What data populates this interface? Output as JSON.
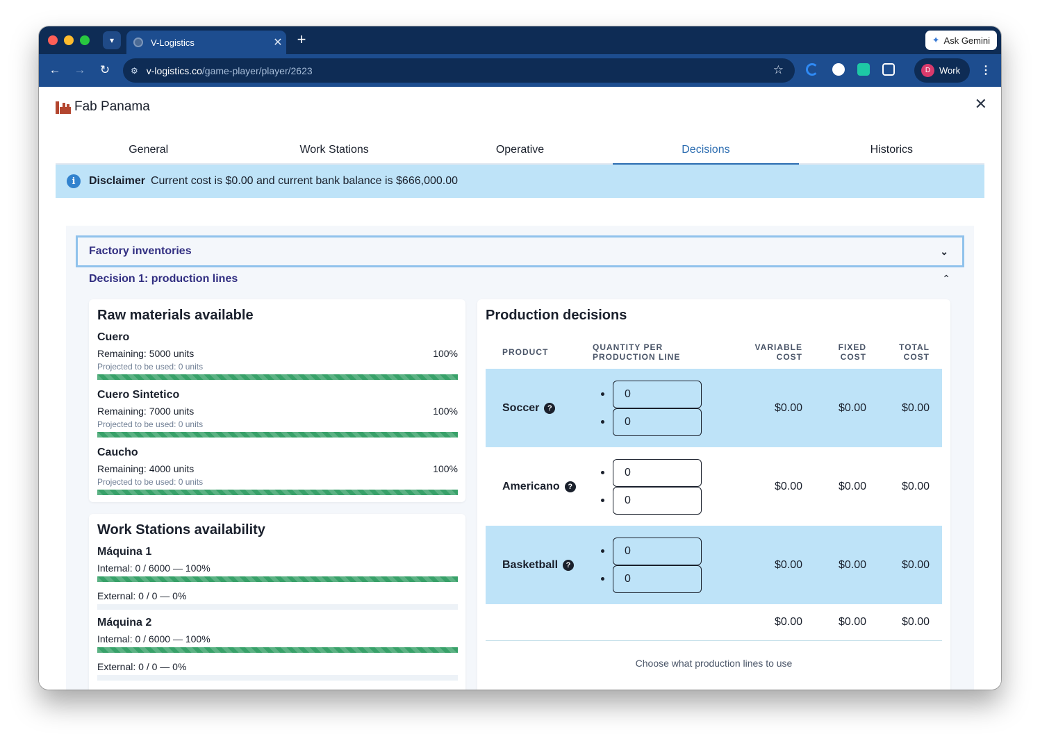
{
  "browser": {
    "tab_title": "V-Logistics",
    "url_host": "v-logistics.co",
    "url_path": "/game-player/player/2623",
    "gemini_label": "Ask Gemini",
    "profile_initial": "D",
    "profile_label": "Work"
  },
  "header": {
    "title": "Fab Panama",
    "close_symbol": "✕"
  },
  "tabs": [
    {
      "label": "General",
      "active": false
    },
    {
      "label": "Work Stations",
      "active": false
    },
    {
      "label": "Operative",
      "active": false
    },
    {
      "label": "Decisions",
      "active": true
    },
    {
      "label": "Historics",
      "active": false
    }
  ],
  "disclaimer": {
    "title": "Disclaimer",
    "text": "Current cost is $0.00 and current bank balance is $666,000.00"
  },
  "accordion": {
    "inventories_title": "Factory inventories",
    "decision_title": "Decision 1: production lines"
  },
  "raw_materials": {
    "title": "Raw materials available",
    "items": [
      {
        "name": "Cuero",
        "remaining": "Remaining: 5000 units",
        "percent_label": "100%",
        "projected": "Projected to be used: 0 units",
        "fill": 1.0
      },
      {
        "name": "Cuero Sintetico",
        "remaining": "Remaining: 7000 units",
        "percent_label": "100%",
        "projected": "Projected to be used: 0 units",
        "fill": 1.0
      },
      {
        "name": "Caucho",
        "remaining": "Remaining: 4000 units",
        "percent_label": "100%",
        "projected": "Projected to be used: 0 units",
        "fill": 1.0
      }
    ]
  },
  "work_stations": {
    "title": "Work Stations availability",
    "items": [
      {
        "name": "Máquina 1",
        "internal": "Internal: 0 / 6000 — 100%",
        "internal_fill": 1.0,
        "external": "External: 0 / 0 — 0%",
        "external_fill": 0.0
      },
      {
        "name": "Máquina 2",
        "internal": "Internal: 0 / 6000 — 100%",
        "internal_fill": 1.0,
        "external": "External: 0 / 0 — 0%",
        "external_fill": 0.0
      }
    ]
  },
  "production": {
    "title": "Production decisions",
    "headers": {
      "product": "PRODUCT",
      "quantity_1": "QUANTITY PER",
      "quantity_2": "PRODUCTION LINE",
      "variable_1": "VARIABLE",
      "variable_2": "COST",
      "fixed_1": "FIXED",
      "fixed_2": "COST",
      "total_1": "TOTAL",
      "total_2": "COST"
    },
    "rows": [
      {
        "product": "Soccer",
        "line1": "0",
        "line2": "0",
        "variable": "$0.00",
        "fixed": "$0.00",
        "total": "$0.00"
      },
      {
        "product": "Americano",
        "line1": "0",
        "line2": "0",
        "variable": "$0.00",
        "fixed": "$0.00",
        "total": "$0.00"
      },
      {
        "product": "Basketball",
        "line1": "0",
        "line2": "0",
        "variable": "$0.00",
        "fixed": "$0.00",
        "total": "$0.00"
      }
    ],
    "totals": {
      "variable": "$0.00",
      "fixed": "$0.00",
      "total": "$0.00"
    },
    "footer_text": "Choose what production lines to use"
  },
  "colors": {
    "browser_dark": "#0e2c55",
    "browser_toolbar": "#1d4d8f",
    "active_tab": "#2b6cb0",
    "disclaimer_bg": "#bee3f8",
    "progress_green": "#38a169",
    "accordion_title": "#312e81"
  },
  "icons": [
    "chevron-down-icon",
    "tab-close-icon",
    "plus-icon",
    "gemini-star-icon",
    "back-arrow-icon",
    "forward-arrow-icon",
    "reload-icon",
    "site-info-icon",
    "bookmark-star-icon",
    "extension-icon",
    "kebab-menu-icon",
    "factory-icon",
    "close-icon",
    "info-icon",
    "chevron-up-icon",
    "help-icon"
  ]
}
